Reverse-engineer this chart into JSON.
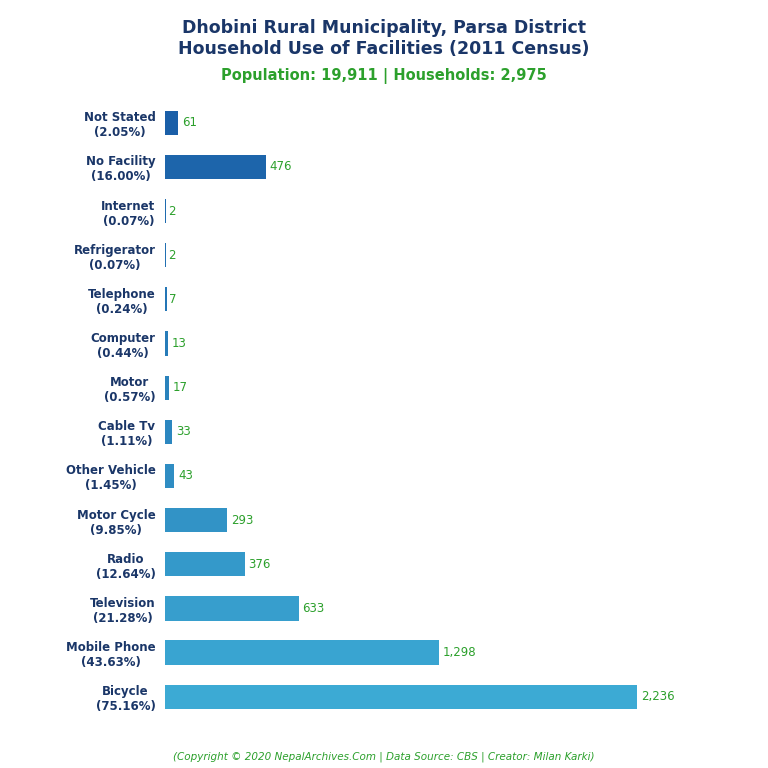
{
  "title_line1": "Dhobini Rural Municipality, Parsa District",
  "title_line2": "Household Use of Facilities (2011 Census)",
  "subtitle": "Population: 19,911 | Households: 2,975",
  "footer": "(Copyright © 2020 NepalArchives.Com | Data Source: CBS | Creator: Milan Karki)",
  "categories": [
    "Not Stated\n(2.05%)",
    "No Facility\n(16.00%)",
    "Internet\n(0.07%)",
    "Refrigerator\n(0.07%)",
    "Telephone\n(0.24%)",
    "Computer\n(0.44%)",
    "Motor\n(0.57%)",
    "Cable Tv\n(1.11%)",
    "Other Vehicle\n(1.45%)",
    "Motor Cycle\n(9.85%)",
    "Radio\n(12.64%)",
    "Television\n(21.28%)",
    "Mobile Phone\n(43.63%)",
    "Bicycle\n(75.16%)"
  ],
  "values": [
    61,
    476,
    2,
    2,
    7,
    13,
    17,
    33,
    43,
    293,
    376,
    633,
    1298,
    2236
  ],
  "bar_color_dark": "#1a5fa8",
  "bar_color_light": "#3caad4",
  "title_color": "#1a3668",
  "subtitle_color": "#2ca02c",
  "label_color": "#2ca02c",
  "footer_color": "#2ca02c",
  "background_color": "#ffffff",
  "xlim": [
    0,
    2600
  ]
}
